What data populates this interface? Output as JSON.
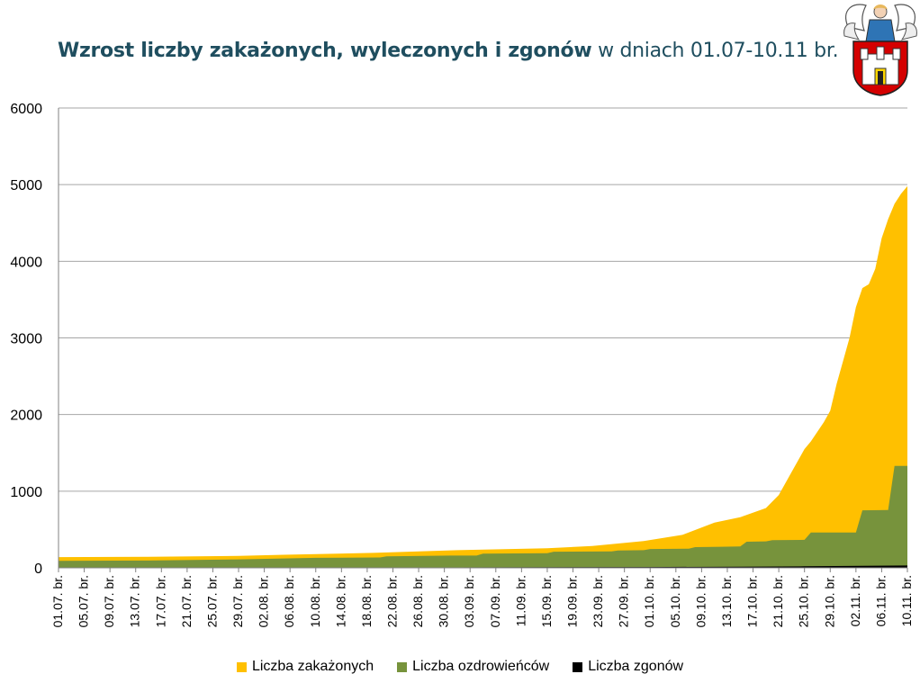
{
  "title": {
    "bold": "Wzrost liczby zakażonych, wyleczonych i zgonów",
    "normal": " w dniach 01.07-10.11 br."
  },
  "crest": {
    "icon": "torun-coat-of-arms-angel-icon"
  },
  "colors": {
    "infected": "#FFC000",
    "recovered": "#77933C",
    "deaths": "#000000",
    "grid": "#A6A6A6",
    "axis": "#808080"
  },
  "legend": {
    "infected": "Liczba zakażonych",
    "recovered": "Liczba ozdrowieńców",
    "deaths": "Liczba zgonów"
  },
  "chart_data": {
    "type": "area",
    "stacked": false,
    "ylim": [
      0,
      6000
    ],
    "yticks": [
      0,
      1000,
      2000,
      3000,
      4000,
      5000,
      6000
    ],
    "grid": true,
    "legend_position": "bottom",
    "x_tick_labels": [
      "01.07. br.",
      "05.07. br.",
      "09.07. br.",
      "13.07. br.",
      "17.07. br.",
      "21.07. br.",
      "25.07. br.",
      "29.07. br.",
      "02.08. br.",
      "06.08. br.",
      "10.08. br.",
      "14.08. br.",
      "18.08. br.",
      "22.08. br.",
      "26.08. br.",
      "30.08. br.",
      "03.09. br.",
      "07.09. br.",
      "11.09. br.",
      "15.09. br.",
      "19.09. br.",
      "23.09. br.",
      "27.09. br.",
      "01.10. br.",
      "05.10. br.",
      "09.10. br.",
      "13.10. br.",
      "17.10. br.",
      "21.10. br.",
      "25.10. br.",
      "29.10. br.",
      "02.11. br.",
      "06.11. br.",
      "10.11. br."
    ],
    "x_start": "01.07.",
    "x_end": "10.11.",
    "series": [
      {
        "name": "Liczba zakażonych",
        "points": [
          [
            "01.07.",
            140
          ],
          [
            "15.07.",
            145
          ],
          [
            "29.07.",
            155
          ],
          [
            "05.08.",
            170
          ],
          [
            "19.08.",
            195
          ],
          [
            "01.09.",
            230
          ],
          [
            "15.09.",
            255
          ],
          [
            "22.09.",
            285
          ],
          [
            "30.09.",
            350
          ],
          [
            "06.10.",
            430
          ],
          [
            "11.10.",
            590
          ],
          [
            "15.10.",
            660
          ],
          [
            "19.10.",
            780
          ],
          [
            "21.10.",
            950
          ],
          [
            "23.10.",
            1250
          ],
          [
            "25.10.",
            1550
          ],
          [
            "26.10.",
            1650
          ],
          [
            "28.10.",
            1900
          ],
          [
            "29.10.",
            2050
          ],
          [
            "30.10.",
            2400
          ],
          [
            "31.10.",
            2700
          ],
          [
            "01.11.",
            3000
          ],
          [
            "02.11.",
            3400
          ],
          [
            "03.11.",
            3650
          ],
          [
            "04.11.",
            3700
          ],
          [
            "05.11.",
            3900
          ],
          [
            "06.11.",
            4300
          ],
          [
            "07.11.",
            4550
          ],
          [
            "08.11.",
            4750
          ],
          [
            "09.11.",
            4880
          ],
          [
            "10.11.",
            4980
          ]
        ]
      },
      {
        "name": "Liczba ozdrowieńców",
        "points": [
          [
            "01.07.",
            90
          ],
          [
            "15.07.",
            95
          ],
          [
            "29.07.",
            110
          ],
          [
            "10.08.",
            130
          ],
          [
            "20.08.",
            135
          ],
          [
            "21.08.",
            150
          ],
          [
            "31.08.",
            160
          ],
          [
            "04.09.",
            160
          ],
          [
            "05.09.",
            185
          ],
          [
            "15.09.",
            190
          ],
          [
            "16.09.",
            210
          ],
          [
            "25.09.",
            215
          ],
          [
            "26.09.",
            225
          ],
          [
            "30.09.",
            230
          ],
          [
            "01.10.",
            245
          ],
          [
            "07.10.",
            250
          ],
          [
            "08.10.",
            270
          ],
          [
            "12.10.",
            275
          ],
          [
            "15.10.",
            280
          ],
          [
            "16.10.",
            340
          ],
          [
            "19.10.",
            345
          ],
          [
            "20.10.",
            360
          ],
          [
            "25.10.",
            365
          ],
          [
            "26.10.",
            460
          ],
          [
            "02.11.",
            460
          ],
          [
            "03.11.",
            750
          ],
          [
            "07.11.",
            755
          ],
          [
            "08.11.",
            1330
          ],
          [
            "10.11.",
            1330
          ]
        ]
      },
      {
        "name": "Liczba zgonów",
        "points": [
          [
            "01.07.",
            5
          ],
          [
            "01.09.",
            6
          ],
          [
            "01.10.",
            10
          ],
          [
            "15.10.",
            15
          ],
          [
            "25.10.",
            20
          ],
          [
            "01.11.",
            25
          ],
          [
            "10.11.",
            30
          ]
        ]
      }
    ]
  }
}
